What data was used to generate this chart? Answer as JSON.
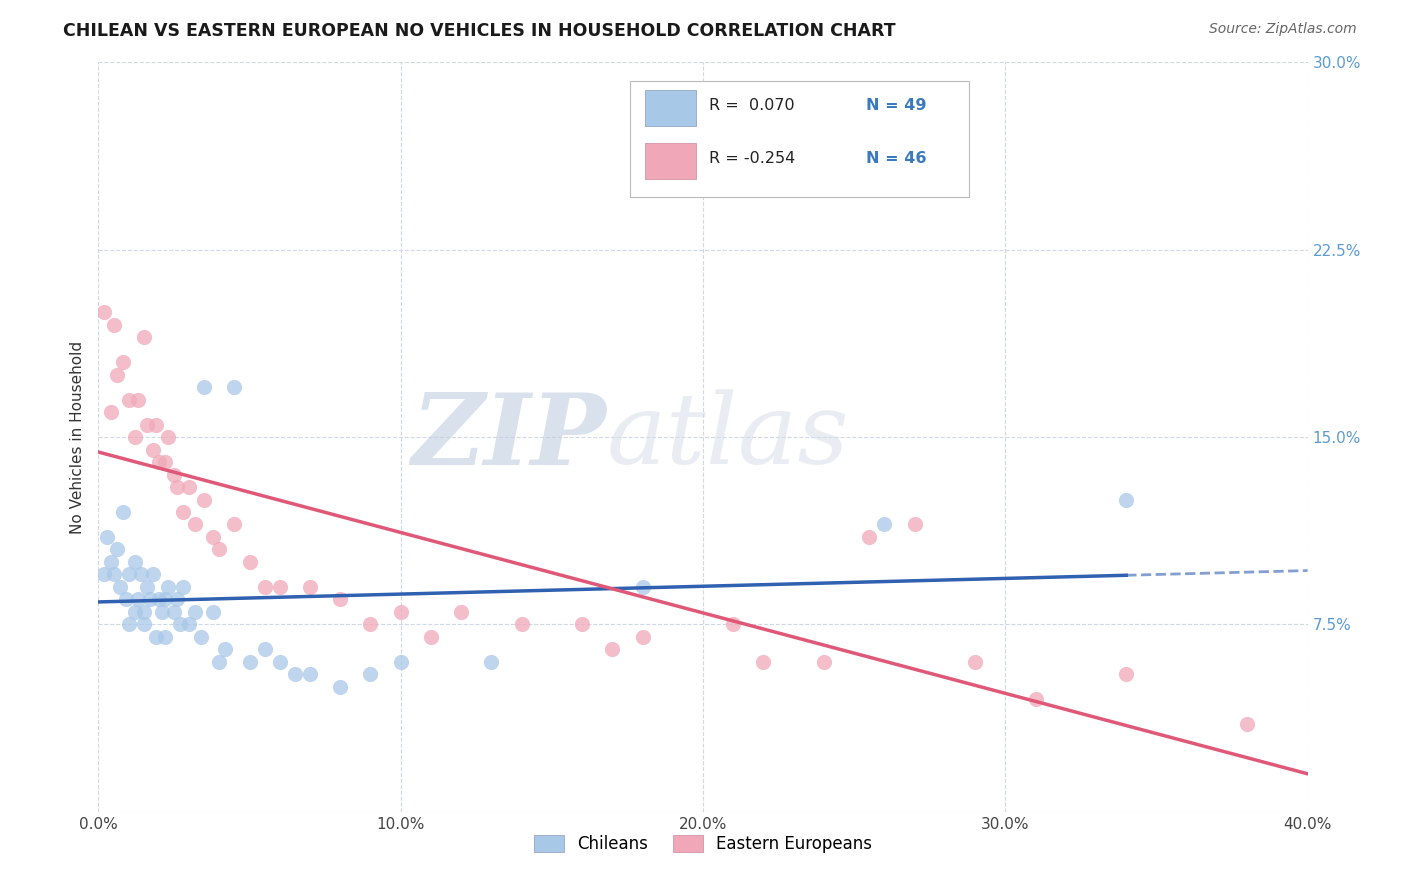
{
  "title": "CHILEAN VS EASTERN EUROPEAN NO VEHICLES IN HOUSEHOLD CORRELATION CHART",
  "source": "Source: ZipAtlas.com",
  "ylabel": "No Vehicles in Household",
  "xlim": [
    0.0,
    0.4
  ],
  "ylim": [
    0.0,
    0.3
  ],
  "xticks": [
    0.0,
    0.1,
    0.2,
    0.3,
    0.4
  ],
  "yticks": [
    0.0,
    0.075,
    0.15,
    0.225,
    0.3
  ],
  "ytick_labels": [
    "",
    "7.5%",
    "15.0%",
    "22.5%",
    "30.0%"
  ],
  "xtick_labels": [
    "0.0%",
    "10.0%",
    "20.0%",
    "30.0%",
    "40.0%"
  ],
  "background_color": "#ffffff",
  "grid_color": "#d0d8e4",
  "watermark_zip": "ZIP",
  "watermark_atlas": "atlas",
  "legend_r1": "R =  0.070",
  "legend_n1": "N = 49",
  "legend_r2": "R = -0.254",
  "legend_n2": "N = 46",
  "legend_label1": "Chileans",
  "legend_label2": "Eastern Europeans",
  "scatter_color1": "#a8c8e8",
  "scatter_color2": "#f0a8b8",
  "line_color1": "#3060b0",
  "line_color2": "#e05878",
  "chileans_x": [
    0.002,
    0.003,
    0.004,
    0.005,
    0.006,
    0.007,
    0.008,
    0.009,
    0.01,
    0.01,
    0.012,
    0.012,
    0.013,
    0.014,
    0.015,
    0.015,
    0.016,
    0.017,
    0.018,
    0.019,
    0.02,
    0.021,
    0.022,
    0.022,
    0.023,
    0.025,
    0.026,
    0.027,
    0.028,
    0.03,
    0.032,
    0.034,
    0.035,
    0.038,
    0.04,
    0.042,
    0.045,
    0.05,
    0.055,
    0.06,
    0.065,
    0.07,
    0.08,
    0.09,
    0.1,
    0.13,
    0.18,
    0.26,
    0.34
  ],
  "chileans_y": [
    0.095,
    0.11,
    0.1,
    0.095,
    0.105,
    0.09,
    0.12,
    0.085,
    0.095,
    0.075,
    0.1,
    0.08,
    0.085,
    0.095,
    0.08,
    0.075,
    0.09,
    0.085,
    0.095,
    0.07,
    0.085,
    0.08,
    0.085,
    0.07,
    0.09,
    0.08,
    0.085,
    0.075,
    0.09,
    0.075,
    0.08,
    0.07,
    0.17,
    0.08,
    0.06,
    0.065,
    0.17,
    0.06,
    0.065,
    0.06,
    0.055,
    0.055,
    0.05,
    0.055,
    0.06,
    0.06,
    0.09,
    0.115,
    0.125
  ],
  "eastern_x": [
    0.002,
    0.004,
    0.005,
    0.006,
    0.008,
    0.01,
    0.012,
    0.013,
    0.015,
    0.016,
    0.018,
    0.019,
    0.02,
    0.022,
    0.023,
    0.025,
    0.026,
    0.028,
    0.03,
    0.032,
    0.035,
    0.038,
    0.04,
    0.045,
    0.05,
    0.055,
    0.06,
    0.07,
    0.08,
    0.09,
    0.1,
    0.11,
    0.12,
    0.14,
    0.16,
    0.17,
    0.18,
    0.21,
    0.22,
    0.24,
    0.255,
    0.27,
    0.29,
    0.31,
    0.34,
    0.38
  ],
  "eastern_y": [
    0.2,
    0.16,
    0.195,
    0.175,
    0.18,
    0.165,
    0.15,
    0.165,
    0.19,
    0.155,
    0.145,
    0.155,
    0.14,
    0.14,
    0.15,
    0.135,
    0.13,
    0.12,
    0.13,
    0.115,
    0.125,
    0.11,
    0.105,
    0.115,
    0.1,
    0.09,
    0.09,
    0.09,
    0.085,
    0.075,
    0.08,
    0.07,
    0.08,
    0.075,
    0.075,
    0.065,
    0.07,
    0.075,
    0.06,
    0.06,
    0.11,
    0.115,
    0.06,
    0.045,
    0.055,
    0.035
  ]
}
